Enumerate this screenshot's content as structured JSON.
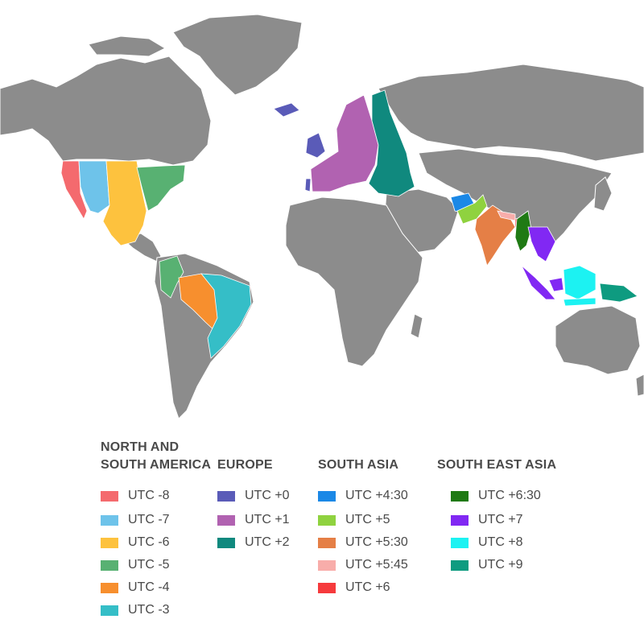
{
  "map": {
    "land_color": "#8c8c8c",
    "border_color": "#ffffff"
  },
  "legend": {
    "columns": [
      {
        "title": "NORTH AND\nSOUTH AMERICA",
        "items": [
          {
            "label": "UTC -8",
            "color": "#f46a6e"
          },
          {
            "label": "UTC -7",
            "color": "#6ec3ea"
          },
          {
            "label": "UTC -6",
            "color": "#fdc23e"
          },
          {
            "label": "UTC -5",
            "color": "#58b172"
          },
          {
            "label": "UTC -4",
            "color": "#f78f2e"
          },
          {
            "label": "UTC -3",
            "color": "#35bec7"
          }
        ]
      },
      {
        "title": "EUROPE",
        "items": [
          {
            "label": "UTC +0",
            "color": "#5a5bb8"
          },
          {
            "label": "UTC +1",
            "color": "#b162b1"
          },
          {
            "label": "UTC +2",
            "color": "#10897e"
          }
        ]
      },
      {
        "title": "SOUTH ASIA",
        "items": [
          {
            "label": "UTC +4:30",
            "color": "#1b88e6"
          },
          {
            "label": "UTC +5",
            "color": "#8fd23f"
          },
          {
            "label": "UTC +5:30",
            "color": "#e57f46"
          },
          {
            "label": "UTC +5:45",
            "color": "#f8adaa"
          },
          {
            "label": "UTC +6",
            "color": "#f63a3c"
          }
        ]
      },
      {
        "title": "SOUTH EAST ASIA",
        "items": [
          {
            "label": "UTC +6:30",
            "color": "#1f7a14"
          },
          {
            "label": "UTC +7",
            "color": "#8128f3"
          },
          {
            "label": "UTC +8",
            "color": "#1cf2f2"
          },
          {
            "label": "UTC +9",
            "color": "#0e9b80"
          }
        ]
      }
    ]
  }
}
